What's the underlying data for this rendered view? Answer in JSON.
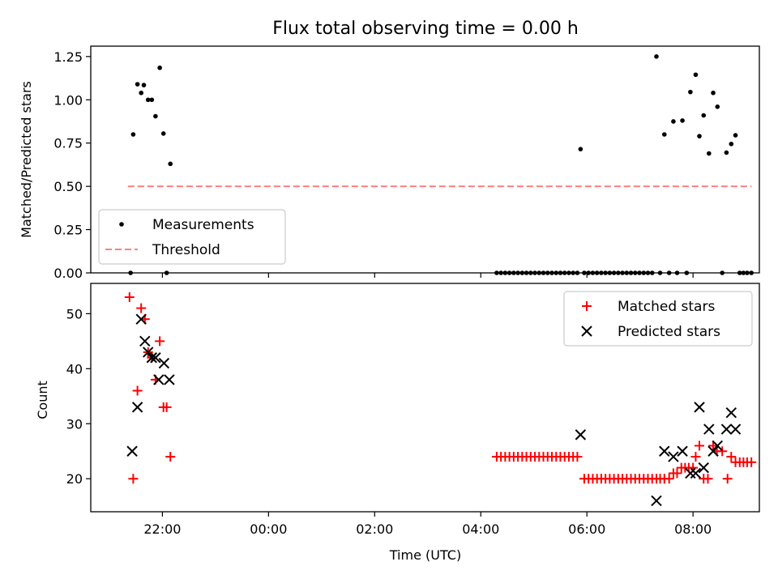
{
  "chart_data": [
    {
      "type": "scatter",
      "title": "Flux total observing time = 0.00 h",
      "xlabel": "",
      "ylabel": "Matched/Predicted stars",
      "ylim": [
        0,
        1.31
      ],
      "yticks": [
        "0.00",
        "0.25",
        "0.50",
        "0.75",
        "1.00",
        "1.25"
      ],
      "xlim_hours": [
        -3.35,
        9.25
      ],
      "x_units": "hours relative to 00:00 UTC",
      "grid": false,
      "legend_position": "lower-left",
      "series": [
        {
          "name": "Measurements",
          "marker": "dot",
          "color": "#000000",
          "points": [
            [
              -2.6,
              0.0
            ],
            [
              -2.55,
              0.8
            ],
            [
              -2.47,
              1.09
            ],
            [
              -2.4,
              1.04
            ],
            [
              -2.35,
              1.085
            ],
            [
              -2.27,
              1.0
            ],
            [
              -2.2,
              1.0
            ],
            [
              -2.13,
              0.905
            ],
            [
              -2.05,
              1.185
            ],
            [
              -1.98,
              0.805
            ],
            [
              -1.92,
              0.0
            ],
            [
              -1.85,
              0.63
            ],
            [
              4.3,
              0.0
            ],
            [
              4.38,
              0.0
            ],
            [
              4.46,
              0.0
            ],
            [
              4.54,
              0.0
            ],
            [
              4.62,
              0.0
            ],
            [
              4.7,
              0.0
            ],
            [
              4.78,
              0.0
            ],
            [
              4.86,
              0.0
            ],
            [
              4.94,
              0.0
            ],
            [
              5.02,
              0.0
            ],
            [
              5.1,
              0.0
            ],
            [
              5.18,
              0.0
            ],
            [
              5.26,
              0.0
            ],
            [
              5.34,
              0.0
            ],
            [
              5.42,
              0.0
            ],
            [
              5.5,
              0.0
            ],
            [
              5.58,
              0.0
            ],
            [
              5.66,
              0.0
            ],
            [
              5.74,
              0.0
            ],
            [
              5.82,
              0.0
            ],
            [
              5.88,
              0.715
            ],
            [
              5.95,
              0.0
            ],
            [
              6.03,
              0.0
            ],
            [
              6.11,
              0.0
            ],
            [
              6.19,
              0.0
            ],
            [
              6.27,
              0.0
            ],
            [
              6.35,
              0.0
            ],
            [
              6.43,
              0.0
            ],
            [
              6.51,
              0.0
            ],
            [
              6.59,
              0.0
            ],
            [
              6.67,
              0.0
            ],
            [
              6.75,
              0.0
            ],
            [
              6.83,
              0.0
            ],
            [
              6.91,
              0.0
            ],
            [
              6.99,
              0.0
            ],
            [
              7.07,
              0.0
            ],
            [
              7.15,
              0.0
            ],
            [
              7.23,
              0.0
            ],
            [
              7.31,
              1.25
            ],
            [
              7.38,
              0.0
            ],
            [
              7.46,
              0.8
            ],
            [
              7.55,
              0.0
            ],
            [
              7.63,
              0.875
            ],
            [
              7.7,
              0.0
            ],
            [
              7.8,
              0.88
            ],
            [
              7.88,
              0.0
            ],
            [
              7.95,
              1.045
            ],
            [
              8.05,
              1.145
            ],
            [
              8.12,
              0.79
            ],
            [
              8.2,
              0.91
            ],
            [
              8.3,
              0.69
            ],
            [
              8.38,
              1.04
            ],
            [
              8.46,
              0.96
            ],
            [
              8.55,
              0.0
            ],
            [
              8.63,
              0.695
            ],
            [
              8.72,
              0.745
            ],
            [
              8.8,
              0.795
            ],
            [
              8.88,
              0.0
            ],
            [
              8.95,
              0.0
            ],
            [
              9.02,
              0.0
            ],
            [
              9.1,
              0.0
            ]
          ]
        },
        {
          "name": "Threshold",
          "marker": "dashed-line",
          "color": "#ff7f7f",
          "x_range": [
            -2.65,
            9.1
          ],
          "value": 0.5
        }
      ]
    },
    {
      "type": "scatter",
      "title": "",
      "xlabel": "Time (UTC)",
      "ylabel": "Count",
      "ylim": [
        14.0,
        55.5
      ],
      "yticks": [
        "20",
        "30",
        "40",
        "50"
      ],
      "xlim_hours": [
        -3.35,
        9.25
      ],
      "xticks": [
        {
          "hour": -2,
          "label": "22:00"
        },
        {
          "hour": 0,
          "label": "00:00"
        },
        {
          "hour": 2,
          "label": "02:00"
        },
        {
          "hour": 4,
          "label": "04:00"
        },
        {
          "hour": 6,
          "label": "06:00"
        },
        {
          "hour": 8,
          "label": "08:00"
        }
      ],
      "grid": false,
      "legend_position": "upper-right",
      "series": [
        {
          "name": "Matched stars",
          "marker": "plus",
          "color": "#ff0000",
          "points": [
            [
              -2.62,
              53
            ],
            [
              -2.55,
              20
            ],
            [
              -2.47,
              36
            ],
            [
              -2.4,
              51
            ],
            [
              -2.33,
              49
            ],
            [
              -2.27,
              43
            ],
            [
              -2.2,
              42
            ],
            [
              -2.13,
              38
            ],
            [
              -2.05,
              45
            ],
            [
              -1.98,
              33
            ],
            [
              -1.92,
              33
            ],
            [
              -1.85,
              24
            ],
            [
              4.3,
              24
            ],
            [
              4.38,
              24
            ],
            [
              4.46,
              24
            ],
            [
              4.54,
              24
            ],
            [
              4.62,
              24
            ],
            [
              4.7,
              24
            ],
            [
              4.78,
              24
            ],
            [
              4.86,
              24
            ],
            [
              4.94,
              24
            ],
            [
              5.02,
              24
            ],
            [
              5.1,
              24
            ],
            [
              5.18,
              24
            ],
            [
              5.26,
              24
            ],
            [
              5.34,
              24
            ],
            [
              5.42,
              24
            ],
            [
              5.5,
              24
            ],
            [
              5.58,
              24
            ],
            [
              5.66,
              24
            ],
            [
              5.74,
              24
            ],
            [
              5.82,
              24
            ],
            [
              5.95,
              20
            ],
            [
              6.03,
              20
            ],
            [
              6.11,
              20
            ],
            [
              6.19,
              20
            ],
            [
              6.27,
              20
            ],
            [
              6.35,
              20
            ],
            [
              6.43,
              20
            ],
            [
              6.51,
              20
            ],
            [
              6.59,
              20
            ],
            [
              6.67,
              20
            ],
            [
              6.75,
              20
            ],
            [
              6.83,
              20
            ],
            [
              6.91,
              20
            ],
            [
              6.99,
              20
            ],
            [
              7.07,
              20
            ],
            [
              7.15,
              20
            ],
            [
              7.23,
              20
            ],
            [
              7.31,
              20
            ],
            [
              7.38,
              20
            ],
            [
              7.46,
              20
            ],
            [
              7.55,
              20
            ],
            [
              7.63,
              21
            ],
            [
              7.7,
              21
            ],
            [
              7.78,
              22
            ],
            [
              7.85,
              22
            ],
            [
              7.92,
              22
            ],
            [
              8.0,
              22
            ],
            [
              8.05,
              24
            ],
            [
              8.12,
              26
            ],
            [
              8.2,
              20
            ],
            [
              8.28,
              20
            ],
            [
              8.38,
              26
            ],
            [
              8.45,
              25
            ],
            [
              8.55,
              25
            ],
            [
              8.65,
              20
            ],
            [
              8.72,
              24
            ],
            [
              8.8,
              23
            ],
            [
              8.88,
              23
            ],
            [
              8.95,
              23
            ],
            [
              9.02,
              23
            ],
            [
              9.1,
              23
            ]
          ]
        },
        {
          "name": "Predicted stars",
          "marker": "x",
          "color": "#000000",
          "points": [
            [
              -2.57,
              25
            ],
            [
              -2.47,
              33
            ],
            [
              -2.4,
              49
            ],
            [
              -2.33,
              45
            ],
            [
              -2.27,
              43
            ],
            [
              -2.2,
              42
            ],
            [
              -2.13,
              42
            ],
            [
              -2.07,
              38
            ],
            [
              -1.97,
              41
            ],
            [
              -1.87,
              38
            ],
            [
              5.88,
              28
            ],
            [
              7.31,
              16
            ],
            [
              7.46,
              25
            ],
            [
              7.63,
              24
            ],
            [
              7.8,
              25
            ],
            [
              7.95,
              21
            ],
            [
              8.05,
              21
            ],
            [
              8.12,
              33
            ],
            [
              8.2,
              22
            ],
            [
              8.3,
              29
            ],
            [
              8.38,
              25
            ],
            [
              8.46,
              26
            ],
            [
              8.63,
              29
            ],
            [
              8.72,
              32
            ],
            [
              8.8,
              29
            ]
          ]
        }
      ]
    }
  ]
}
